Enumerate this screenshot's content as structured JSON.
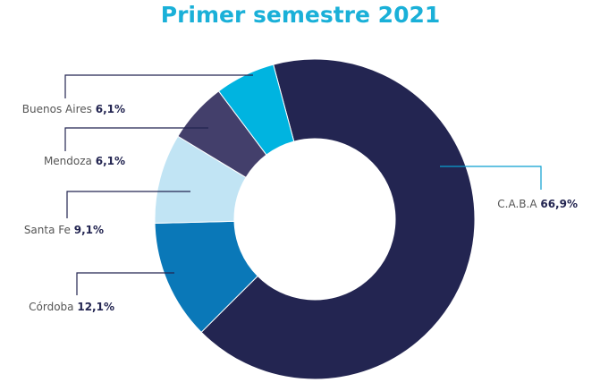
{
  "chart_data": {
    "type": "donut",
    "title": "Primer semestre 2021",
    "categories": [
      "C.A.B.A",
      "Córdoba",
      "Santa Fe",
      "Mendoza",
      "Buenos Aires"
    ],
    "values": [
      66.9,
      12.1,
      9.1,
      6.1,
      6.1
    ],
    "value_labels": [
      "66,9%",
      "12,1%",
      "9,1%",
      "6,1%",
      "6,1%"
    ],
    "colors": [
      "#232551",
      "#0a78b8",
      "#c1e4f4",
      "#433f6b",
      "#00b4e0"
    ]
  }
}
